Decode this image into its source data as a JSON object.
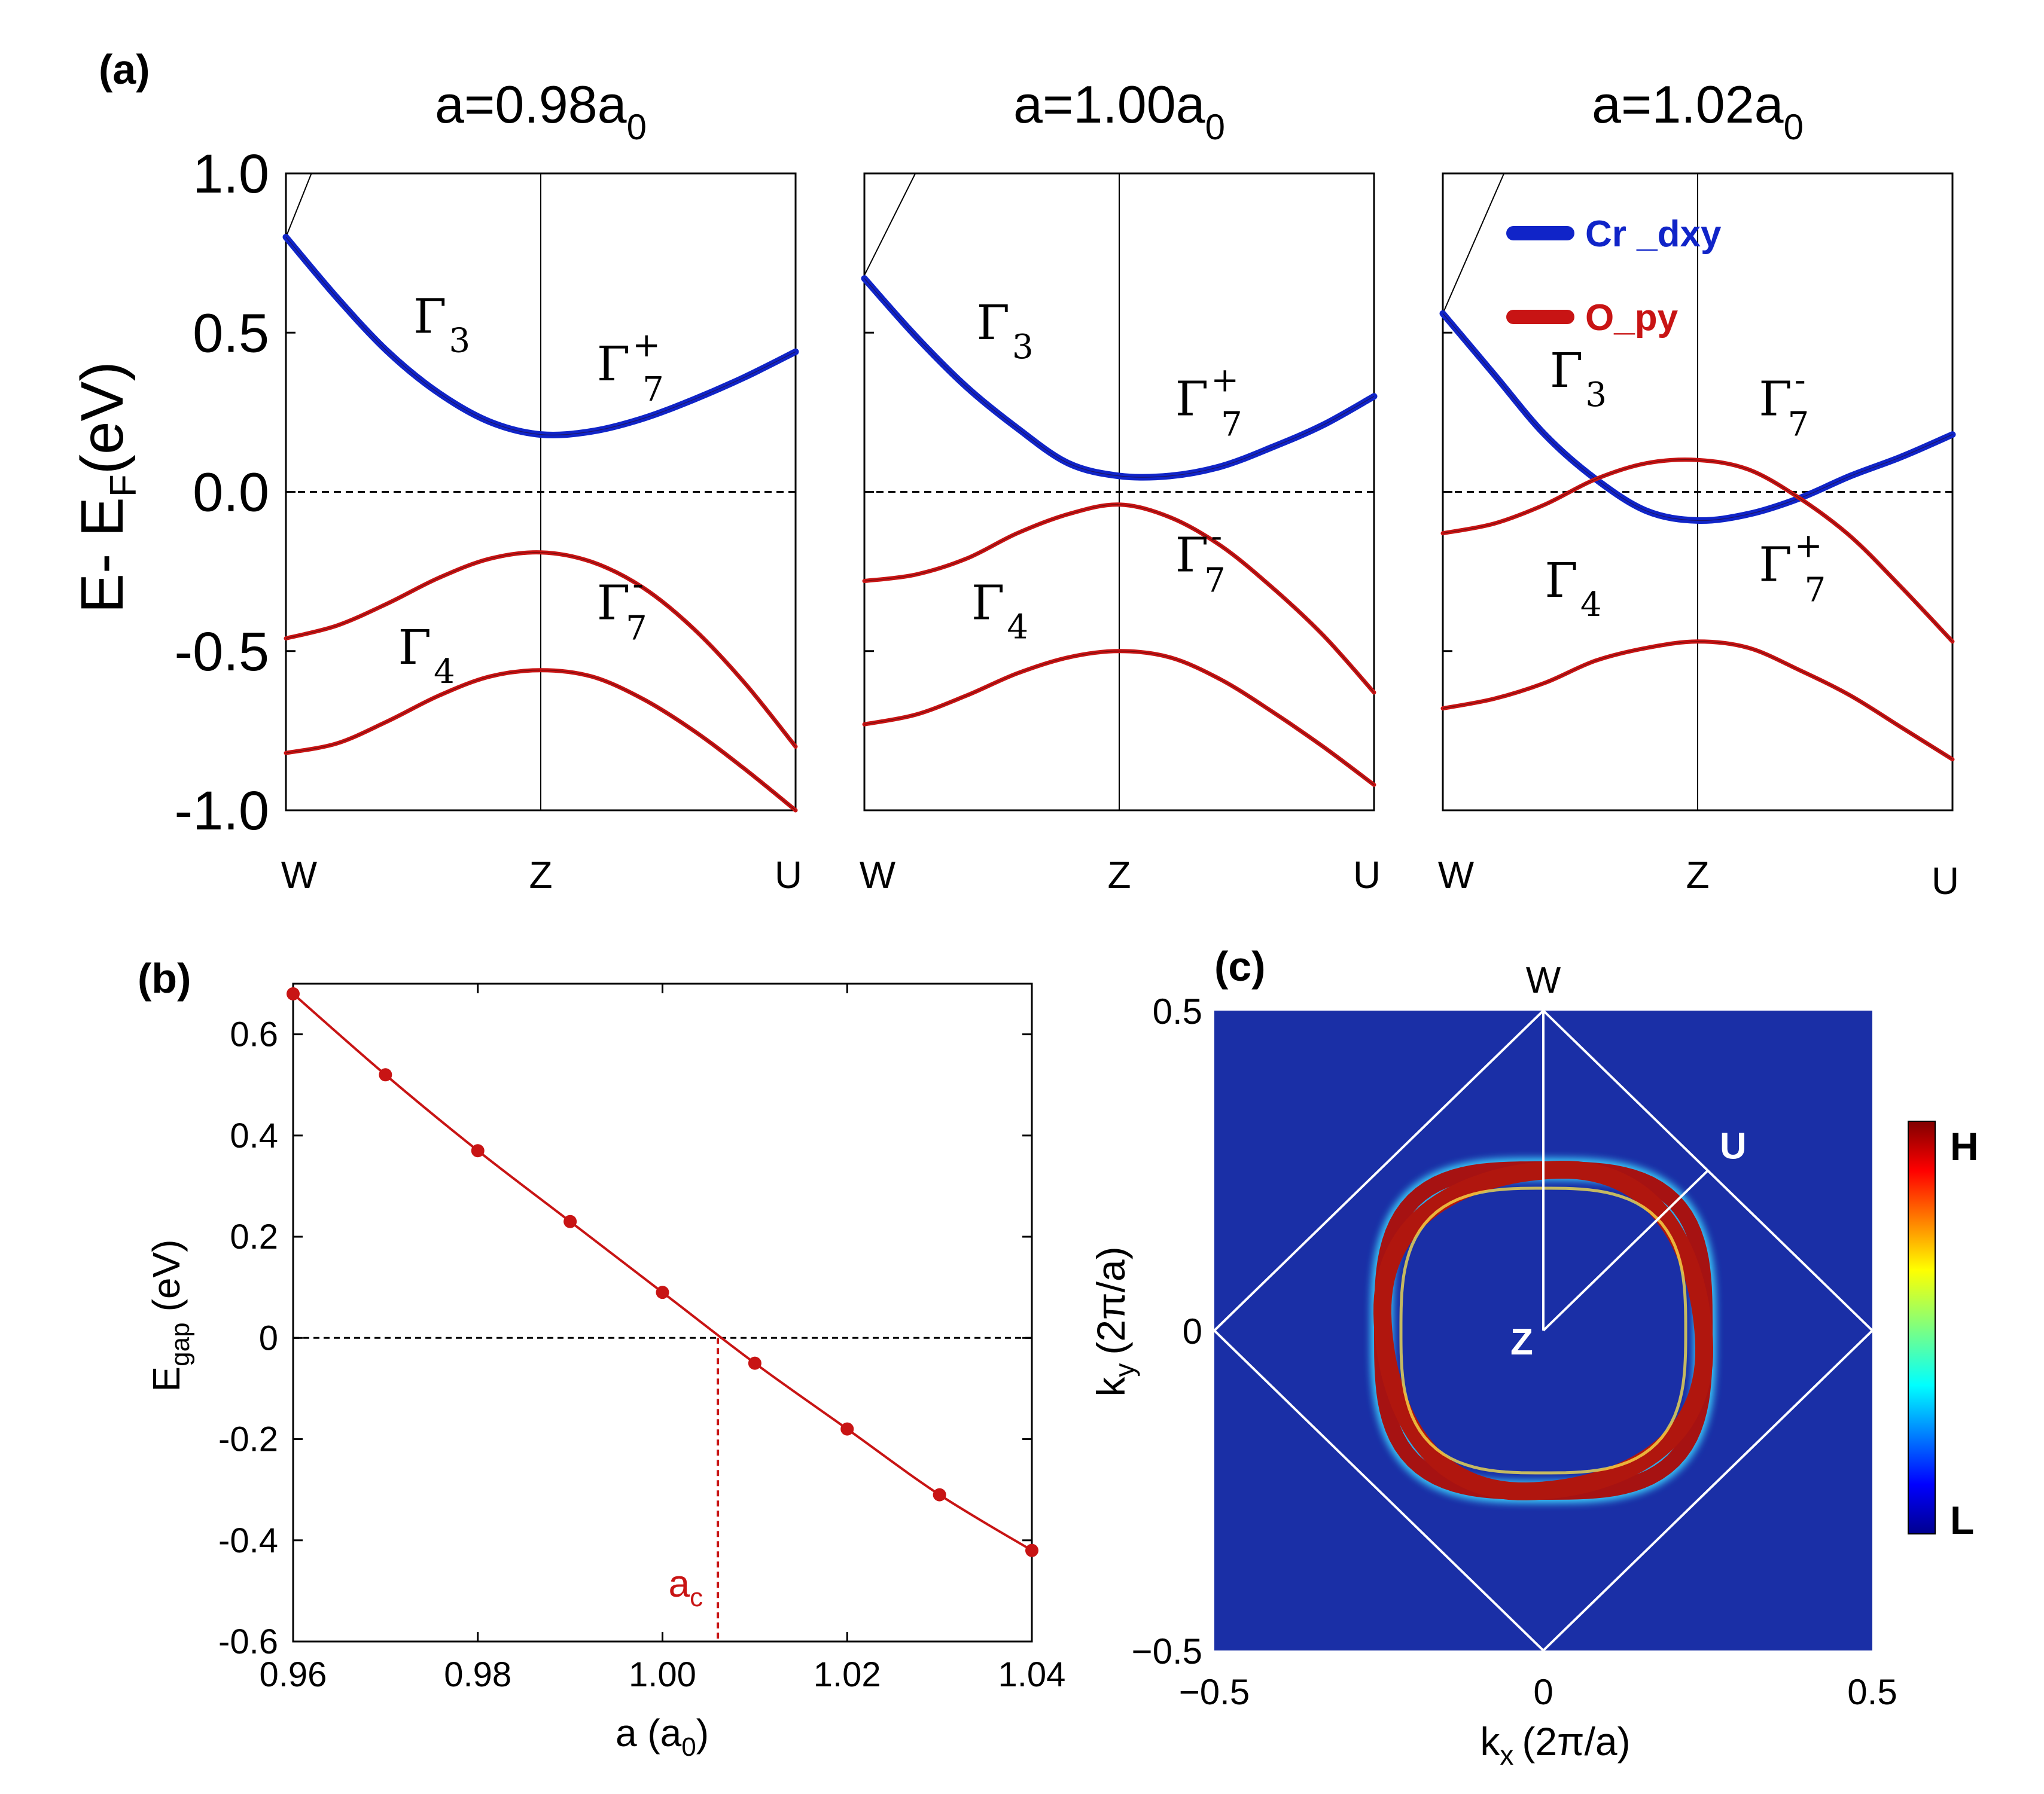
{
  "panel_labels": {
    "a": "(a)",
    "b": "(b)",
    "c": "(c)"
  },
  "colors": {
    "cr": "#1024c8",
    "o": "#c81414",
    "frame": "#000000",
    "bz": "#ffffff",
    "bg_map": "#1a2fa6"
  },
  "chart_data": [
    {
      "type": "line",
      "id": "band-structure",
      "ylabel_main": "E- E",
      "ylabel_sub": "F",
      "ylabel_unit": "(eV)",
      "ylim": [
        -1.0,
        1.0
      ],
      "yticks": [
        {
          "v": 1.0,
          "label": "1.0"
        },
        {
          "v": 0.5,
          "label": "0.5"
        },
        {
          "v": 0.0,
          "label": "0.0"
        },
        {
          "v": -0.5,
          "label": "-0.5"
        },
        {
          "v": -1.0,
          "label": "-1.0"
        }
      ],
      "kpath": [
        "W",
        "Z",
        "U"
      ],
      "legend": [
        {
          "label": "Cr _dxy",
          "color": "#1024c8"
        },
        {
          "label": "O_py",
          "color": "#c81414"
        }
      ],
      "subplots": [
        {
          "title_main": "a=0.98a",
          "title_sub": "0",
          "bands": [
            {
              "name": "Cr_dxy",
              "k": [
                0,
                0.1,
                0.2,
                0.3,
                0.4,
                0.5,
                0.6,
                0.7,
                0.8,
                0.9,
                1.0
              ],
              "E": [
                0.8,
                0.61,
                0.44,
                0.31,
                0.22,
                0.18,
                0.19,
                0.23,
                0.29,
                0.36,
                0.44
              ]
            },
            {
              "name": "O_py_upper",
              "k": [
                0,
                0.1,
                0.2,
                0.3,
                0.4,
                0.5,
                0.6,
                0.7,
                0.8,
                0.9,
                1.0
              ],
              "E": [
                -0.46,
                -0.42,
                -0.35,
                -0.27,
                -0.21,
                -0.19,
                -0.22,
                -0.3,
                -0.43,
                -0.6,
                -0.8
              ]
            },
            {
              "name": "O_py_lower",
              "k": [
                0,
                0.1,
                0.2,
                0.3,
                0.4,
                0.5,
                0.6,
                0.7,
                0.8,
                0.9,
                1.0
              ],
              "E": [
                -0.82,
                -0.79,
                -0.72,
                -0.64,
                -0.58,
                -0.56,
                -0.58,
                -0.65,
                -0.75,
                -0.87,
                -1.0
              ]
            }
          ],
          "extra_band": {
            "k": [
              0,
              0.05
            ],
            "E": [
              0.8,
              1.0
            ]
          },
          "annotations": [
            {
              "sym": "Γ",
              "sub": "3",
              "sup": "",
              "k": 0.25,
              "E": 0.5
            },
            {
              "sym": "Γ",
              "sub": "7",
              "sup": "+",
              "k": 0.61,
              "E": 0.35
            },
            {
              "sym": "Γ",
              "sub": "7",
              "sup": "-",
              "k": 0.61,
              "E": -0.4
            },
            {
              "sym": "Γ",
              "sub": "4",
              "sup": "",
              "k": 0.22,
              "E": -0.54
            }
          ]
        },
        {
          "title_main": "a=1.00a",
          "title_sub": "0",
          "bands": [
            {
              "name": "Cr_dxy",
              "k": [
                0,
                0.1,
                0.2,
                0.3,
                0.4,
                0.5,
                0.6,
                0.7,
                0.8,
                0.9,
                1.0
              ],
              "E": [
                0.67,
                0.49,
                0.33,
                0.2,
                0.09,
                0.05,
                0.05,
                0.08,
                0.14,
                0.21,
                0.3
              ]
            },
            {
              "name": "O_py_upper",
              "k": [
                0,
                0.1,
                0.2,
                0.3,
                0.4,
                0.5,
                0.6,
                0.7,
                0.8,
                0.9,
                1.0
              ],
              "E": [
                -0.28,
                -0.26,
                -0.21,
                -0.13,
                -0.07,
                -0.04,
                -0.08,
                -0.17,
                -0.3,
                -0.45,
                -0.63
              ]
            },
            {
              "name": "O_py_lower",
              "k": [
                0,
                0.1,
                0.2,
                0.3,
                0.4,
                0.5,
                0.6,
                0.7,
                0.8,
                0.9,
                1.0
              ],
              "E": [
                -0.73,
                -0.7,
                -0.64,
                -0.57,
                -0.52,
                -0.5,
                -0.52,
                -0.59,
                -0.69,
                -0.8,
                -0.92
              ]
            }
          ],
          "extra_band": {
            "k": [
              0,
              0.1
            ],
            "E": [
              0.68,
              1.0
            ]
          },
          "annotations": [
            {
              "sym": "Γ",
              "sub": "3",
              "sup": "",
              "k": 0.22,
              "E": 0.48
            },
            {
              "sym": "Γ",
              "sub": "7",
              "sup": "+",
              "k": 0.61,
              "E": 0.24
            },
            {
              "sym": "Γ",
              "sub": "7",
              "sup": "-",
              "k": 0.61,
              "E": -0.25
            },
            {
              "sym": "Γ",
              "sub": "4",
              "sup": "",
              "k": 0.21,
              "E": -0.4
            }
          ]
        },
        {
          "title_main": "a=1.02a",
          "title_sub": "0",
          "bands": [
            {
              "name": "Cr_dxy",
              "k": [
                0,
                0.1,
                0.2,
                0.3,
                0.4,
                0.5,
                0.6,
                0.7,
                0.8,
                0.9,
                1.0
              ],
              "E": [
                0.56,
                0.37,
                0.18,
                0.04,
                -0.06,
                -0.09,
                -0.07,
                -0.02,
                0.05,
                0.11,
                0.18
              ]
            },
            {
              "name": "O_py_upper",
              "k": [
                0,
                0.1,
                0.2,
                0.3,
                0.4,
                0.5,
                0.6,
                0.7,
                0.8,
                0.9,
                1.0
              ],
              "E": [
                -0.13,
                -0.1,
                -0.04,
                0.04,
                0.09,
                0.1,
                0.07,
                -0.02,
                -0.14,
                -0.3,
                -0.47
              ]
            },
            {
              "name": "O_py_lower",
              "k": [
                0,
                0.1,
                0.2,
                0.3,
                0.4,
                0.5,
                0.6,
                0.7,
                0.8,
                0.9,
                1.0
              ],
              "E": [
                -0.68,
                -0.65,
                -0.6,
                -0.53,
                -0.49,
                -0.47,
                -0.49,
                -0.56,
                -0.64,
                -0.74,
                -0.84
              ]
            }
          ],
          "extra_band": {
            "k": [
              0,
              0.12
            ],
            "E": [
              0.56,
              1.0
            ]
          },
          "annotations": [
            {
              "sym": "Γ",
              "sub": "3",
              "sup": "",
              "k": 0.21,
              "E": 0.33
            },
            {
              "sym": "Γ",
              "sub": "7",
              "sup": "-",
              "k": 0.62,
              "E": 0.24
            },
            {
              "sym": "Γ",
              "sub": "7",
              "sup": "+",
              "k": 0.62,
              "E": -0.28
            },
            {
              "sym": "Γ",
              "sub": "4",
              "sup": "",
              "k": 0.2,
              "E": -0.33
            }
          ]
        }
      ]
    },
    {
      "type": "line",
      "id": "gap-vs-lattice",
      "xlabel_main": "a (a",
      "xlabel_sub": "0",
      "xlabel_tail": ")",
      "ylabel_main": "E",
      "ylabel_sub": "gap",
      "ylabel_unit": "(eV)",
      "xlim": [
        0.96,
        1.04
      ],
      "ylim": [
        -0.6,
        0.7
      ],
      "xticks": [
        {
          "v": 0.96,
          "label": "0.96"
        },
        {
          "v": 0.98,
          "label": "0.98"
        },
        {
          "v": 1.0,
          "label": "1.00"
        },
        {
          "v": 1.02,
          "label": "1.02"
        },
        {
          "v": 1.04,
          "label": "1.04"
        }
      ],
      "yticks": [
        {
          "v": 0.6,
          "label": "0.6"
        },
        {
          "v": 0.4,
          "label": "0.4"
        },
        {
          "v": 0.2,
          "label": "0.2"
        },
        {
          "v": 0.0,
          "label": "0"
        },
        {
          "v": -0.2,
          "label": "-0.2"
        },
        {
          "v": -0.4,
          "label": "-0.4"
        },
        {
          "v": -0.6,
          "label": "-0.6"
        }
      ],
      "x": [
        0.96,
        0.97,
        0.98,
        0.99,
        1.0,
        1.01,
        1.02,
        1.03,
        1.04
      ],
      "y": [
        0.68,
        0.52,
        0.37,
        0.23,
        0.09,
        -0.05,
        -0.18,
        -0.31,
        -0.42
      ],
      "critical": {
        "x": 1.006,
        "label_main": "a",
        "label_sub": "c"
      }
    },
    {
      "type": "heatmap",
      "id": "fermi-surface",
      "xlabel_main": "k",
      "xlabel_sub": "x",
      "xlabel_unit": "(2π/a)",
      "ylabel_main": "k",
      "ylabel_sub": "y",
      "ylabel_unit": "(2π/a)",
      "xlim": [
        -0.5,
        0.5
      ],
      "ylim": [
        -0.5,
        0.5
      ],
      "xticks": [
        {
          "v": -0.5,
          "label": "−0.5"
        },
        {
          "v": 0.0,
          "label": "0"
        },
        {
          "v": 0.5,
          "label": "0.5"
        }
      ],
      "yticks": [
        {
          "v": 0.5,
          "label": "0.5"
        },
        {
          "v": 0.0,
          "label": "0"
        },
        {
          "v": -0.5,
          "label": "−0.5"
        }
      ],
      "points": [
        {
          "label": "W",
          "kx": 0.0,
          "ky": 0.5
        },
        {
          "label": "U",
          "kx": 0.25,
          "ky": 0.25
        },
        {
          "label": "Z",
          "kx": 0.0,
          "ky": 0.0
        }
      ],
      "colorbar": {
        "high": "H",
        "low": "L"
      }
    }
  ]
}
